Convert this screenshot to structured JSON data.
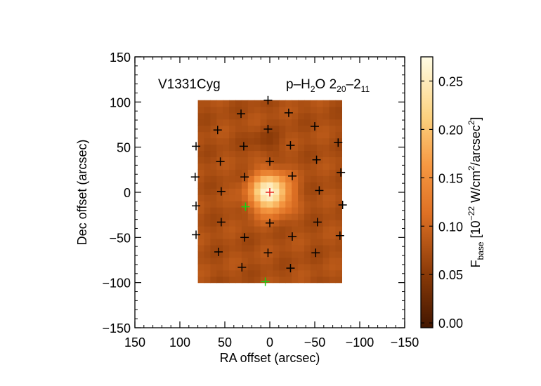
{
  "chart_data": {
    "type": "heatmap",
    "title": "",
    "source_label": "V1331Cyg",
    "line_label": {
      "species": "p–H",
      "sub1": "2",
      "mid": "O 2",
      "sub2": "20",
      "dash": "–2",
      "sub3": "11"
    },
    "xlabel": "RA offset (arcsec)",
    "ylabel": "Dec offset (arcsec)",
    "xlim": [
      150,
      -150
    ],
    "ylim": [
      -150,
      150
    ],
    "x_ticks": [
      150,
      100,
      50,
      0,
      -50,
      -100,
      -150
    ],
    "x_tick_labels": [
      "150",
      "100",
      "50",
      "0",
      "−50",
      "−100",
      "−150"
    ],
    "y_ticks": [
      150,
      100,
      50,
      0,
      -50,
      -100,
      -150
    ],
    "y_tick_labels": [
      "150",
      "100",
      "50",
      "0",
      "−50",
      "−100",
      "−150"
    ],
    "map_extent": {
      "x": [
        80,
        -80
      ],
      "y": [
        -100,
        102
      ]
    },
    "peak": {
      "x": 0,
      "y": 0,
      "value": 0.27
    },
    "background_level": 0.075,
    "colorbar": {
      "range": [
        -0.005,
        0.275
      ],
      "ticks": [
        0.0,
        0.05,
        0.1,
        0.15,
        0.2,
        0.25
      ],
      "tick_labels": [
        "0.00",
        "0.05",
        "0.10",
        "0.15",
        "0.20",
        "0.25"
      ],
      "label": {
        "main": "F",
        "sub": "base",
        "unit_a": " [10",
        "exp": "−22",
        "unit_b": " W/cm",
        "exp2": "2",
        "unit_c": "/arcsec",
        "exp3": "2",
        "unit_d": "]"
      }
    },
    "spaxels_black": [
      {
        "x": 2,
        "y": 102
      },
      {
        "x": 32,
        "y": 87
      },
      {
        "x": -21,
        "y": 88
      },
      {
        "x": 58,
        "y": 69
      },
      {
        "x": 2,
        "y": 70
      },
      {
        "x": -50,
        "y": 73
      },
      {
        "x": 82,
        "y": 51
      },
      {
        "x": 29,
        "y": 51
      },
      {
        "x": -23,
        "y": 52
      },
      {
        "x": -76,
        "y": 55
      },
      {
        "x": 55,
        "y": 34
      },
      {
        "x": 0,
        "y": 34
      },
      {
        "x": -52,
        "y": 36
      },
      {
        "x": 83,
        "y": 17
      },
      {
        "x": 28,
        "y": 17
      },
      {
        "x": -25,
        "y": 18
      },
      {
        "x": -79,
        "y": 22
      },
      {
        "x": 54,
        "y": 1
      },
      {
        "x": -55,
        "y": 2
      },
      {
        "x": 82,
        "y": -15
      },
      {
        "x": 0,
        "y": -34
      },
      {
        "x": -81,
        "y": -14
      },
      {
        "x": 54,
        "y": -33
      },
      {
        "x": -53,
        "y": -33
      },
      {
        "x": 82,
        "y": -47
      },
      {
        "x": 28,
        "y": -50
      },
      {
        "x": -25,
        "y": -49
      },
      {
        "x": -78,
        "y": -48
      },
      {
        "x": 57,
        "y": -66
      },
      {
        "x": 2,
        "y": -67
      },
      {
        "x": -51,
        "y": -67
      },
      {
        "x": 31,
        "y": -83
      },
      {
        "x": -23,
        "y": -84
      }
    ],
    "spaxel_center": {
      "x": 0,
      "y": 0,
      "color": "#e6261e"
    },
    "spaxels_green": [
      {
        "x": 27,
        "y": -16
      },
      {
        "x": 5,
        "y": -99
      }
    ],
    "colors": {
      "background": "#ffffff",
      "axes": "#000000",
      "green_marker": "#14d214",
      "red_marker": "#e6261e"
    }
  }
}
